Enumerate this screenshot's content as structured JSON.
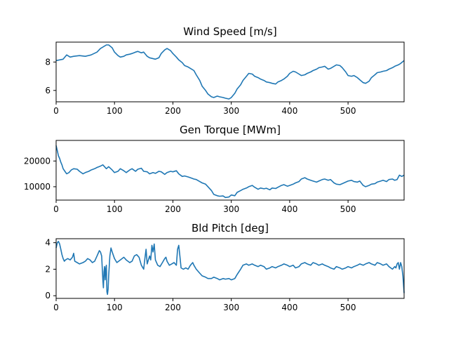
{
  "chart_data": [
    {
      "type": "line",
      "title": "Wind Speed [m/s]",
      "xlim": [
        0,
        596
      ],
      "ylim": [
        5.2,
        9.4
      ],
      "xticks": [
        0,
        100,
        200,
        300,
        400,
        500
      ],
      "yticks": [
        6,
        8
      ],
      "xtick_labels": [
        "0",
        "100",
        "200",
        "300",
        "400",
        "500"
      ],
      "ytick_labels": [
        "6",
        "8"
      ],
      "grid": false,
      "series": [
        {
          "color": "#1f77b4",
          "x": [
            0,
            6,
            12,
            18,
            24,
            30,
            40,
            50,
            60,
            70,
            76,
            80,
            86,
            90,
            96,
            100,
            106,
            110,
            116,
            120,
            126,
            130,
            136,
            140,
            146,
            150,
            156,
            160,
            170,
            176,
            180,
            186,
            190,
            196,
            200,
            206,
            210,
            216,
            220,
            226,
            230,
            236,
            240,
            246,
            250,
            256,
            260,
            266,
            270,
            276,
            280,
            286,
            290,
            296,
            300,
            306,
            310,
            316,
            320,
            326,
            330,
            336,
            340,
            346,
            350,
            356,
            360,
            366,
            370,
            376,
            380,
            386,
            390,
            396,
            400,
            406,
            410,
            416,
            420,
            426,
            430,
            436,
            440,
            446,
            450,
            456,
            460,
            466,
            470,
            476,
            480,
            486,
            490,
            496,
            500,
            506,
            510,
            516,
            520,
            526,
            530,
            536,
            540,
            546,
            550,
            556,
            560,
            566,
            570,
            576,
            580,
            586,
            590,
            596
          ],
          "y": [
            8.1,
            8.15,
            8.2,
            8.5,
            8.35,
            8.4,
            8.45,
            8.4,
            8.5,
            8.7,
            8.95,
            9.05,
            9.2,
            9.2,
            9.0,
            8.7,
            8.45,
            8.35,
            8.4,
            8.5,
            8.55,
            8.6,
            8.7,
            8.75,
            8.65,
            8.7,
            8.4,
            8.3,
            8.2,
            8.3,
            8.6,
            8.85,
            8.95,
            8.8,
            8.6,
            8.35,
            8.15,
            7.95,
            7.75,
            7.65,
            7.55,
            7.4,
            7.1,
            6.7,
            6.3,
            6.0,
            5.75,
            5.55,
            5.5,
            5.6,
            5.55,
            5.5,
            5.45,
            5.4,
            5.5,
            5.8,
            6.1,
            6.4,
            6.7,
            7.0,
            7.2,
            7.15,
            7.0,
            6.9,
            6.8,
            6.7,
            6.6,
            6.55,
            6.5,
            6.45,
            6.6,
            6.7,
            6.8,
            7.0,
            7.2,
            7.35,
            7.3,
            7.15,
            7.05,
            7.1,
            7.2,
            7.3,
            7.4,
            7.5,
            7.6,
            7.65,
            7.7,
            7.5,
            7.55,
            7.7,
            7.8,
            7.75,
            7.6,
            7.3,
            7.05,
            7.0,
            7.05,
            6.9,
            6.75,
            6.55,
            6.5,
            6.65,
            6.9,
            7.1,
            7.25,
            7.3,
            7.35,
            7.4,
            7.5,
            7.6,
            7.7,
            7.8,
            7.9,
            8.1
          ]
        }
      ]
    },
    {
      "type": "line",
      "title": "Gen Torque [MWm]",
      "xlim": [
        0,
        596
      ],
      "ylim": [
        4800,
        28000
      ],
      "xticks": [
        0,
        100,
        200,
        300,
        400,
        500
      ],
      "yticks": [
        10000,
        20000
      ],
      "xtick_labels": [
        "0",
        "100",
        "200",
        "300",
        "400",
        "500"
      ],
      "ytick_labels": [
        "10000",
        "20000"
      ],
      "grid": false,
      "series": [
        {
          "color": "#1f77b4",
          "x": [
            0,
            2,
            4,
            6,
            8,
            10,
            12,
            15,
            18,
            22,
            26,
            30,
            36,
            40,
            46,
            50,
            56,
            60,
            66,
            70,
            76,
            80,
            86,
            90,
            96,
            100,
            106,
            110,
            116,
            120,
            126,
            130,
            136,
            140,
            146,
            150,
            156,
            160,
            166,
            170,
            176,
            180,
            186,
            190,
            196,
            200,
            206,
            210,
            216,
            220,
            226,
            230,
            236,
            240,
            246,
            250,
            256,
            260,
            266,
            270,
            276,
            280,
            286,
            290,
            296,
            300,
            306,
            310,
            316,
            320,
            326,
            330,
            336,
            340,
            346,
            350,
            356,
            360,
            366,
            370,
            376,
            380,
            386,
            390,
            396,
            400,
            406,
            410,
            416,
            420,
            426,
            430,
            436,
            440,
            446,
            450,
            456,
            460,
            466,
            470,
            476,
            480,
            486,
            490,
            496,
            500,
            506,
            510,
            516,
            520,
            526,
            530,
            536,
            540,
            546,
            550,
            556,
            560,
            566,
            570,
            576,
            580,
            584,
            588,
            592,
            596
          ],
          "y": [
            26000,
            24000,
            22000,
            21000,
            19500,
            18500,
            17000,
            16000,
            15000,
            15500,
            16500,
            17000,
            16800,
            16000,
            15000,
            15500,
            16000,
            16500,
            17000,
            17500,
            18000,
            18500,
            17000,
            17800,
            16500,
            15500,
            16000,
            17000,
            16200,
            15500,
            16500,
            17000,
            16000,
            16800,
            17200,
            16000,
            15800,
            15000,
            15500,
            15200,
            16000,
            15800,
            14800,
            15500,
            16000,
            15800,
            16200,
            15000,
            14000,
            14200,
            13800,
            13500,
            13000,
            12800,
            12000,
            11500,
            11000,
            10000,
            8500,
            7000,
            6500,
            6300,
            6400,
            5800,
            6000,
            6800,
            6500,
            7800,
            8500,
            9000,
            9500,
            10000,
            10500,
            9800,
            9000,
            9500,
            9200,
            9400,
            8800,
            9500,
            9300,
            9800,
            10500,
            10800,
            10200,
            10500,
            11000,
            11500,
            12000,
            13000,
            13500,
            13000,
            12500,
            12200,
            11800,
            12200,
            12800,
            13000,
            12500,
            12800,
            11500,
            11000,
            10800,
            11200,
            11800,
            12200,
            12500,
            12000,
            11800,
            12200,
            10500,
            10000,
            10500,
            11000,
            11200,
            11800,
            12200,
            12500,
            12000,
            12800,
            13000,
            12500,
            12800,
            14500,
            14000,
            14500
          ]
        }
      ]
    },
    {
      "type": "line",
      "title": "Bld Pitch [deg]",
      "xlim": [
        0,
        596
      ],
      "ylim": [
        -0.2,
        4.3
      ],
      "xticks": [
        0,
        100,
        200,
        300,
        400,
        500
      ],
      "yticks": [
        0,
        2,
        4
      ],
      "xtick_labels": [
        "0",
        "100",
        "200",
        "300",
        "400",
        "500"
      ],
      "ytick_labels": [
        "0",
        "2",
        "4"
      ],
      "grid": false,
      "series": [
        {
          "color": "#1f77b4",
          "x": [
            0,
            2,
            4,
            6,
            8,
            10,
            12,
            14,
            16,
            20,
            24,
            28,
            30,
            32,
            36,
            40,
            46,
            50,
            54,
            58,
            62,
            66,
            70,
            74,
            76,
            78,
            80,
            81,
            82,
            83,
            84,
            85,
            86,
            87,
            88,
            89,
            90,
            92,
            94,
            96,
            100,
            104,
            110,
            116,
            120,
            126,
            130,
            134,
            138,
            142,
            146,
            150,
            152,
            154,
            156,
            160,
            162,
            164,
            166,
            168,
            170,
            174,
            178,
            182,
            186,
            188,
            190,
            194,
            198,
            202,
            206,
            208,
            210,
            212,
            214,
            218,
            222,
            226,
            230,
            234,
            236,
            240,
            246,
            250,
            256,
            260,
            266,
            270,
            276,
            280,
            286,
            290,
            296,
            300,
            306,
            310,
            316,
            320,
            326,
            330,
            336,
            340,
            346,
            350,
            356,
            360,
            366,
            370,
            376,
            380,
            386,
            390,
            396,
            400,
            406,
            410,
            416,
            420,
            426,
            430,
            436,
            440,
            446,
            450,
            456,
            460,
            466,
            470,
            476,
            480,
            486,
            490,
            496,
            500,
            506,
            510,
            516,
            520,
            526,
            530,
            536,
            540,
            546,
            550,
            556,
            560,
            566,
            570,
            576,
            580,
            582,
            584,
            586,
            588,
            590,
            592,
            594,
            596
          ],
          "y": [
            3.6,
            4.0,
            4.1,
            3.9,
            3.5,
            3.1,
            2.8,
            2.6,
            2.7,
            2.8,
            2.7,
            2.9,
            3.2,
            2.6,
            2.5,
            2.4,
            2.5,
            2.6,
            2.8,
            2.7,
            2.5,
            2.6,
            3.0,
            3.4,
            3.3,
            3.0,
            1.2,
            0.6,
            1.8,
            2.2,
            1.2,
            2.0,
            2.3,
            0.3,
            0.1,
            0.5,
            1.5,
            3.0,
            3.6,
            3.3,
            2.8,
            2.5,
            2.7,
            2.9,
            2.7,
            2.5,
            2.6,
            3.0,
            3.1,
            2.9,
            2.3,
            2.0,
            2.8,
            3.5,
            2.4,
            3.0,
            2.7,
            3.8,
            3.3,
            3.9,
            2.7,
            2.3,
            2.2,
            2.5,
            2.8,
            2.9,
            2.6,
            2.3,
            2.4,
            2.5,
            2.3,
            3.5,
            3.8,
            3.0,
            2.1,
            2.0,
            2.1,
            2.0,
            2.3,
            2.5,
            2.3,
            2.0,
            1.7,
            1.5,
            1.4,
            1.3,
            1.3,
            1.4,
            1.3,
            1.2,
            1.3,
            1.25,
            1.3,
            1.2,
            1.3,
            1.6,
            2.0,
            2.3,
            2.4,
            2.3,
            2.4,
            2.3,
            2.2,
            2.3,
            2.2,
            2.0,
            2.1,
            2.2,
            2.1,
            2.2,
            2.3,
            2.4,
            2.3,
            2.2,
            2.3,
            2.1,
            2.2,
            2.4,
            2.5,
            2.4,
            2.3,
            2.5,
            2.4,
            2.3,
            2.4,
            2.3,
            2.2,
            2.1,
            2.0,
            2.2,
            2.1,
            2.0,
            2.1,
            2.2,
            2.1,
            2.2,
            2.3,
            2.4,
            2.3,
            2.4,
            2.5,
            2.4,
            2.3,
            2.5,
            2.4,
            2.3,
            2.4,
            2.2,
            2.0,
            2.2,
            2.1,
            2.4,
            2.5,
            2.0,
            2.5,
            2.2,
            1.5,
            0.2
          ]
        }
      ]
    }
  ]
}
